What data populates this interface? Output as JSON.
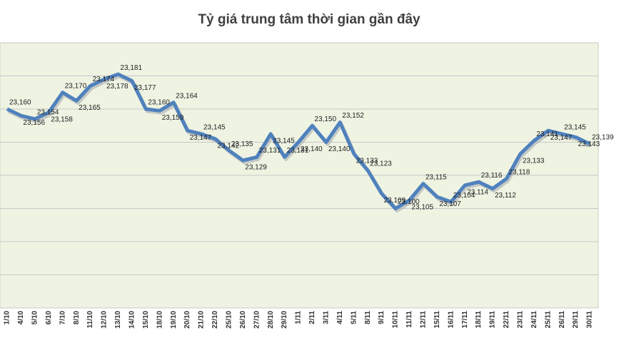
{
  "chart_data": {
    "type": "line",
    "title": "Tỷ giá trung tâm thời gian gần đây",
    "categories": [
      "1/10",
      "4/10",
      "5/10",
      "6/10",
      "7/10",
      "8/10",
      "11/10",
      "12/10",
      "13/10",
      "14/10",
      "15/10",
      "18/10",
      "19/10",
      "20/10",
      "21/10",
      "22/10",
      "25/10",
      "26/10",
      "27/10",
      "28/10",
      "29/10",
      "1/11",
      "2/11",
      "3/11",
      "4/11",
      "5/11",
      "8/11",
      "9/11",
      "10/11",
      "11/11",
      "12/11",
      "15/11",
      "16/11",
      "17/11",
      "18/11",
      "19/11",
      "22/11",
      "23/11",
      "24/11",
      "25/11",
      "26/11",
      "29/11",
      "30/11"
    ],
    "series": [
      {
        "color": "#4f81bd",
        "values": [
          23160,
          23156,
          23154,
          23158,
          23170,
          23165,
          23174,
          23178,
          23181,
          23177,
          23160,
          23159,
          23164,
          23147,
          23145,
          23142,
          23135,
          23129,
          23131,
          23145,
          23131,
          23140,
          23150,
          23140,
          23152,
          23133,
          23123,
          23109,
          23100,
          23105,
          23115,
          23107,
          23104,
          23114,
          23116,
          23112,
          23118,
          23133,
          23141,
          23147,
          23145,
          23143,
          23139
        ],
        "value_labels": [
          "23,160",
          "23,156",
          "23,154",
          "23,158",
          "23,170",
          "23,165",
          "23,174",
          "23,178",
          "23,181",
          "23,177",
          "23,160",
          "23,159",
          "23,164",
          "23,147",
          "23,145",
          "23,142",
          "23,135",
          "23,129",
          "23,131",
          "23,145",
          "23,131",
          "23,140",
          "23,150",
          "23,140",
          "23,152",
          "23,133",
          "23,123",
          "23,109",
          "23,100",
          "23,105",
          "23,115",
          "23,107",
          "23,104",
          "23,114",
          "23,116",
          "23,112",
          "23,118",
          "23,133",
          "23,141",
          "23,147",
          "23,145",
          "23,143",
          "23,139"
        ]
      }
    ],
    "ylim": [
      23040,
      23200
    ],
    "yticks": [
      23040,
      23060,
      23080,
      23100,
      23120,
      23140,
      23160,
      23180,
      23200
    ],
    "grid": true,
    "show_ytick_labels": false
  }
}
